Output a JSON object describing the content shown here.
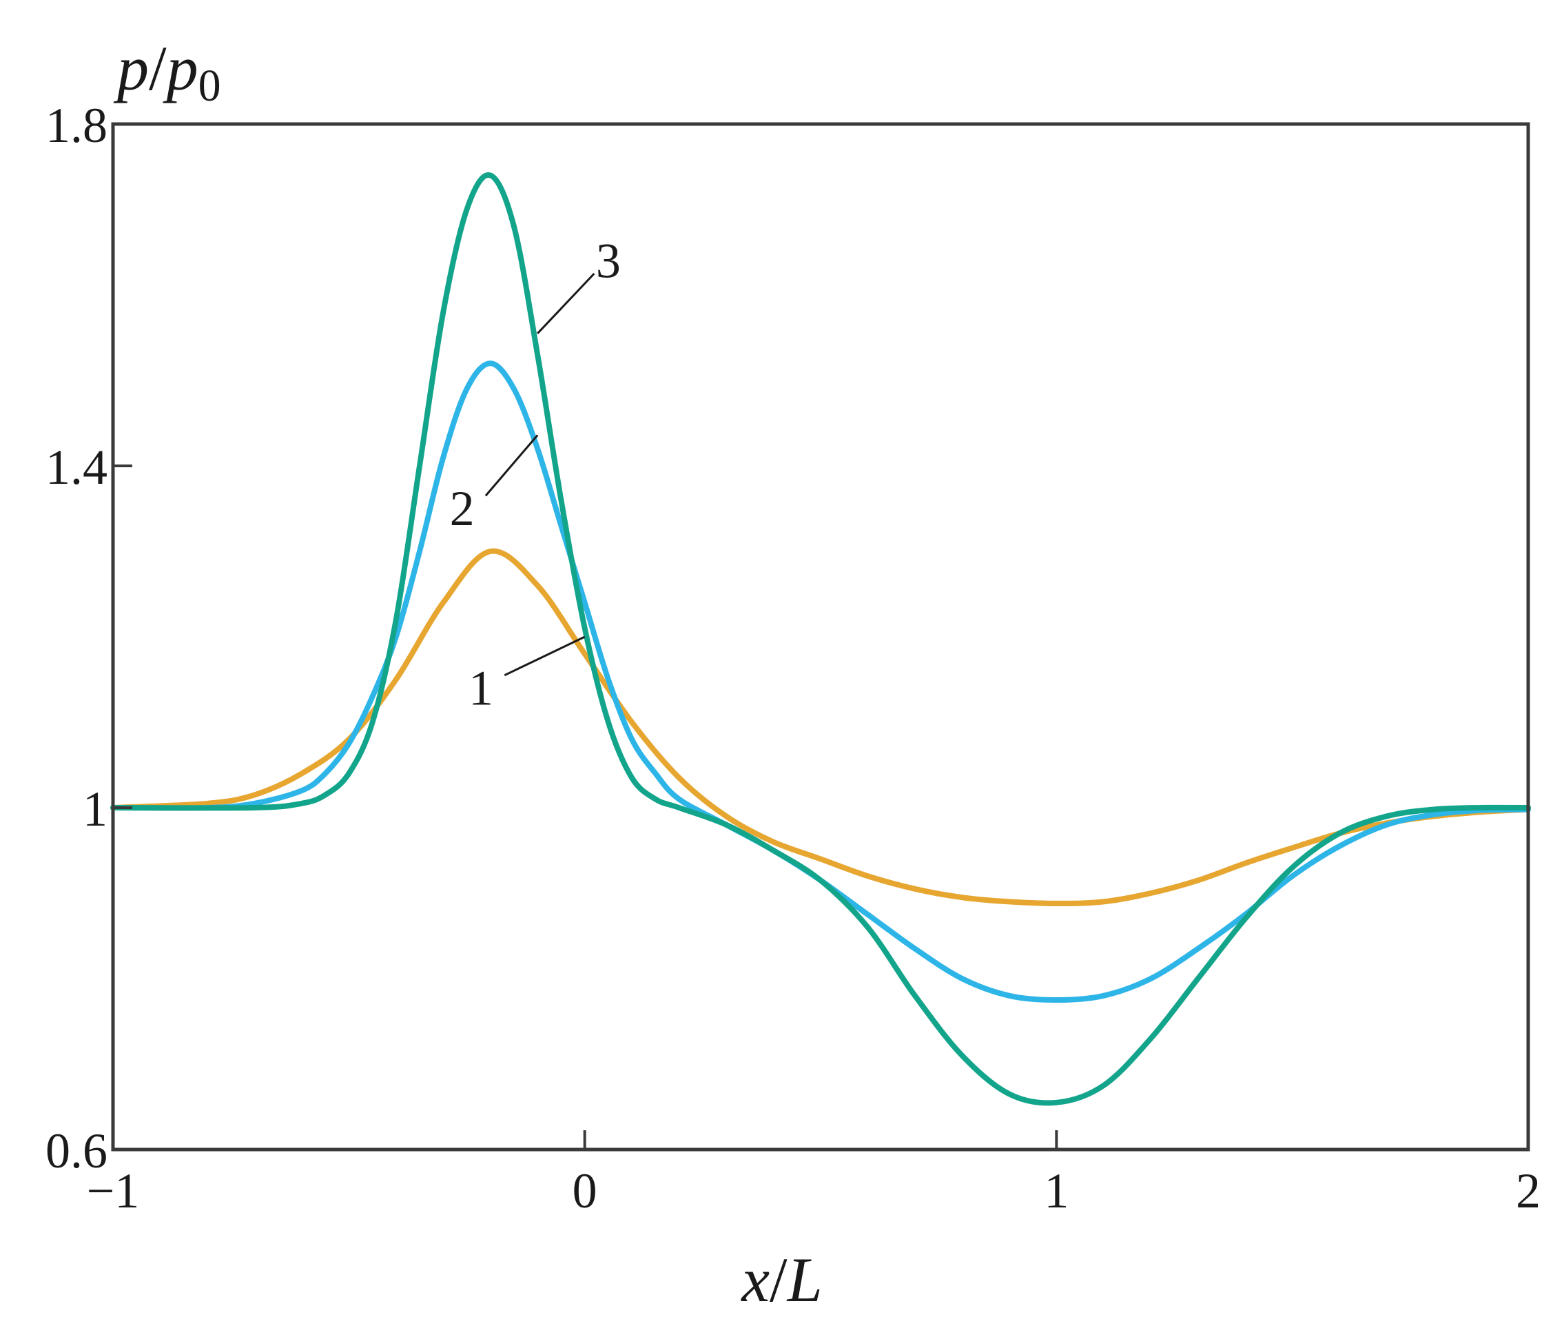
{
  "chart_data": {
    "type": "line",
    "title": "",
    "xlabel": {
      "var": "x",
      "sep": "/",
      "ref": "L"
    },
    "ylabel": {
      "var": "p",
      "sep": "/",
      "ref": "p",
      "sub": "0"
    },
    "xlim": [
      -1,
      2
    ],
    "ylim": [
      0.6,
      1.8
    ],
    "xticks": [
      {
        "value": -1,
        "label": "−1"
      },
      {
        "value": 0,
        "label": "0"
      },
      {
        "value": 1,
        "label": "1"
      },
      {
        "value": 2,
        "label": "2"
      }
    ],
    "yticks": [
      {
        "value": 0.6,
        "label": "0.6"
      },
      {
        "value": 1.0,
        "label": "1"
      },
      {
        "value": 1.4,
        "label": "1.4"
      },
      {
        "value": 1.8,
        "label": "1.8"
      }
    ],
    "grid": false,
    "series": [
      {
        "label": "1",
        "color": "#e6a630",
        "x": [
          -1.0,
          -0.8,
          -0.7,
          -0.6,
          -0.5,
          -0.4,
          -0.3,
          -0.2,
          -0.1,
          0.0,
          0.1,
          0.2,
          0.3,
          0.4,
          0.5,
          0.6,
          0.7,
          0.8,
          0.9,
          1.0,
          1.1,
          1.2,
          1.3,
          1.4,
          1.5,
          1.6,
          1.7,
          1.8,
          1.9,
          2.0
        ],
        "y": [
          1.0,
          1.005,
          1.015,
          1.04,
          1.08,
          1.15,
          1.24,
          1.3,
          1.26,
          1.18,
          1.1,
          1.035,
          0.99,
          0.96,
          0.94,
          0.92,
          0.905,
          0.895,
          0.89,
          0.888,
          0.89,
          0.9,
          0.915,
          0.935,
          0.953,
          0.97,
          0.982,
          0.99,
          0.995,
          0.998
        ]
      },
      {
        "label": "2",
        "color": "#2eb5e8",
        "x": [
          -1.0,
          -0.8,
          -0.7,
          -0.6,
          -0.55,
          -0.5,
          -0.45,
          -0.4,
          -0.35,
          -0.3,
          -0.25,
          -0.2,
          -0.15,
          -0.1,
          -0.05,
          0.0,
          0.05,
          0.1,
          0.15,
          0.2,
          0.3,
          0.4,
          0.5,
          0.6,
          0.7,
          0.8,
          0.9,
          1.0,
          1.1,
          1.2,
          1.3,
          1.4,
          1.5,
          1.6,
          1.7,
          1.8,
          1.9,
          2.0
        ],
        "y": [
          1.0,
          1.0,
          1.005,
          1.02,
          1.04,
          1.075,
          1.13,
          1.2,
          1.3,
          1.41,
          1.49,
          1.52,
          1.49,
          1.42,
          1.33,
          1.24,
          1.15,
          1.08,
          1.04,
          1.01,
          0.98,
          0.95,
          0.915,
          0.875,
          0.835,
          0.8,
          0.78,
          0.775,
          0.78,
          0.8,
          0.835,
          0.875,
          0.92,
          0.955,
          0.98,
          0.992,
          0.997,
          0.998
        ]
      },
      {
        "label": "3",
        "color": "#13a58b",
        "x": [
          -1.0,
          -0.7,
          -0.6,
          -0.55,
          -0.5,
          -0.45,
          -0.4,
          -0.35,
          -0.3,
          -0.25,
          -0.2,
          -0.15,
          -0.1,
          -0.05,
          0.0,
          0.05,
          0.1,
          0.15,
          0.2,
          0.3,
          0.4,
          0.5,
          0.6,
          0.7,
          0.8,
          0.9,
          1.0,
          1.1,
          1.2,
          1.3,
          1.4,
          1.5,
          1.6,
          1.7,
          1.8,
          1.9,
          2.0
        ],
        "y": [
          1.0,
          1.0,
          1.005,
          1.015,
          1.04,
          1.1,
          1.22,
          1.4,
          1.58,
          1.7,
          1.74,
          1.68,
          1.53,
          1.36,
          1.21,
          1.1,
          1.035,
          1.01,
          1.0,
          0.98,
          0.95,
          0.915,
          0.86,
          0.78,
          0.71,
          0.665,
          0.655,
          0.675,
          0.73,
          0.8,
          0.87,
          0.93,
          0.97,
          0.99,
          0.998,
          1.0,
          1.0
        ]
      }
    ],
    "callouts": [
      {
        "text": "1",
        "series": 0,
        "from": [
          0.0,
          1.2
        ],
        "to": [
          -0.17,
          1.155
        ],
        "label_at": [
          -0.22,
          1.14
        ]
      },
      {
        "text": "2",
        "series": 1,
        "from": [
          -0.1,
          1.436
        ],
        "to": [
          -0.21,
          1.365
        ],
        "label_at": [
          -0.26,
          1.35
        ]
      },
      {
        "text": "3",
        "series": 2,
        "from": [
          -0.1,
          1.555
        ],
        "to": [
          0.02,
          1.625
        ],
        "label_at": [
          0.05,
          1.64
        ]
      }
    ]
  }
}
